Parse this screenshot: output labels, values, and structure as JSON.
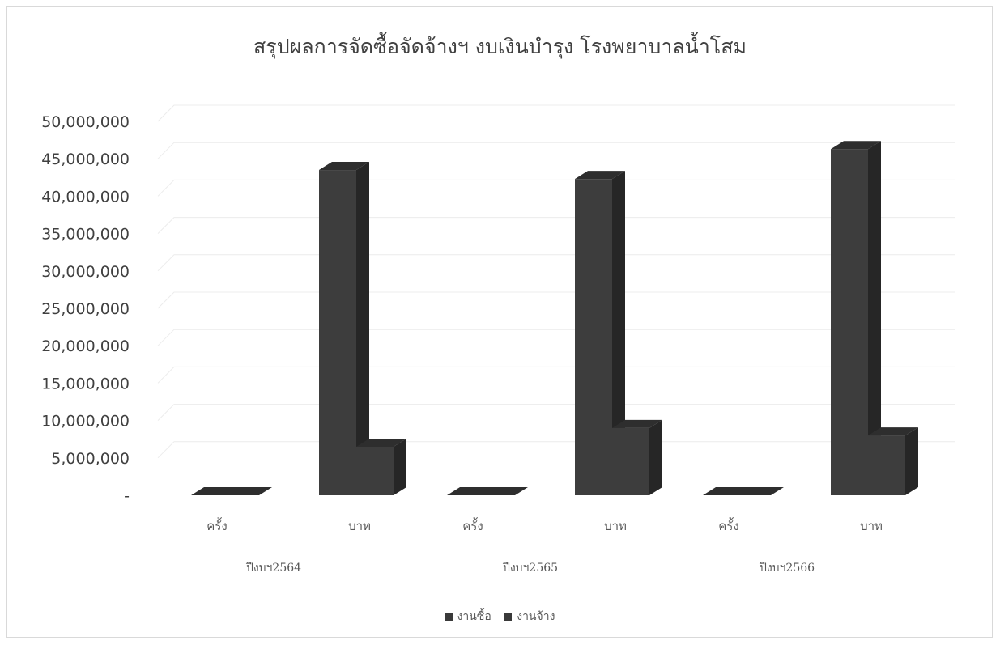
{
  "chart_data": {
    "type": "bar",
    "title": "สรุปผลการจัดซื้อจัดจ้างฯ งบเงินบำรุง โรงพยาบาลน้ำโสม",
    "groups": [
      "ปีงบฯ2564",
      "ปีงบฯ2565",
      "ปีงบฯ2566"
    ],
    "categories": [
      "ครั้ง",
      "บาท"
    ],
    "series": [
      {
        "name": "งานซื้อ",
        "values": [
          [
            0,
            43500000
          ],
          [
            0,
            42300000
          ],
          [
            0,
            46300000
          ]
        ]
      },
      {
        "name": "งานจ้าง",
        "values": [
          [
            0,
            6500000
          ],
          [
            0,
            9000000
          ],
          [
            0,
            8000000
          ]
        ]
      }
    ],
    "ylim": [
      0,
      50000000
    ],
    "yticks": [
      "-",
      "5,000,000",
      "10,000,000",
      "15,000,000",
      "20,000,000",
      "25,000,000",
      "30,000,000",
      "35,000,000",
      "40,000,000",
      "45,000,000",
      "50,000,000"
    ],
    "grid": true,
    "legend_position": "bottom",
    "colors": {
      "bar_front": "#3d3d3d",
      "bar_side": "#262626",
      "bar_top": "#2e2e2e",
      "grid": "#ececec"
    }
  }
}
